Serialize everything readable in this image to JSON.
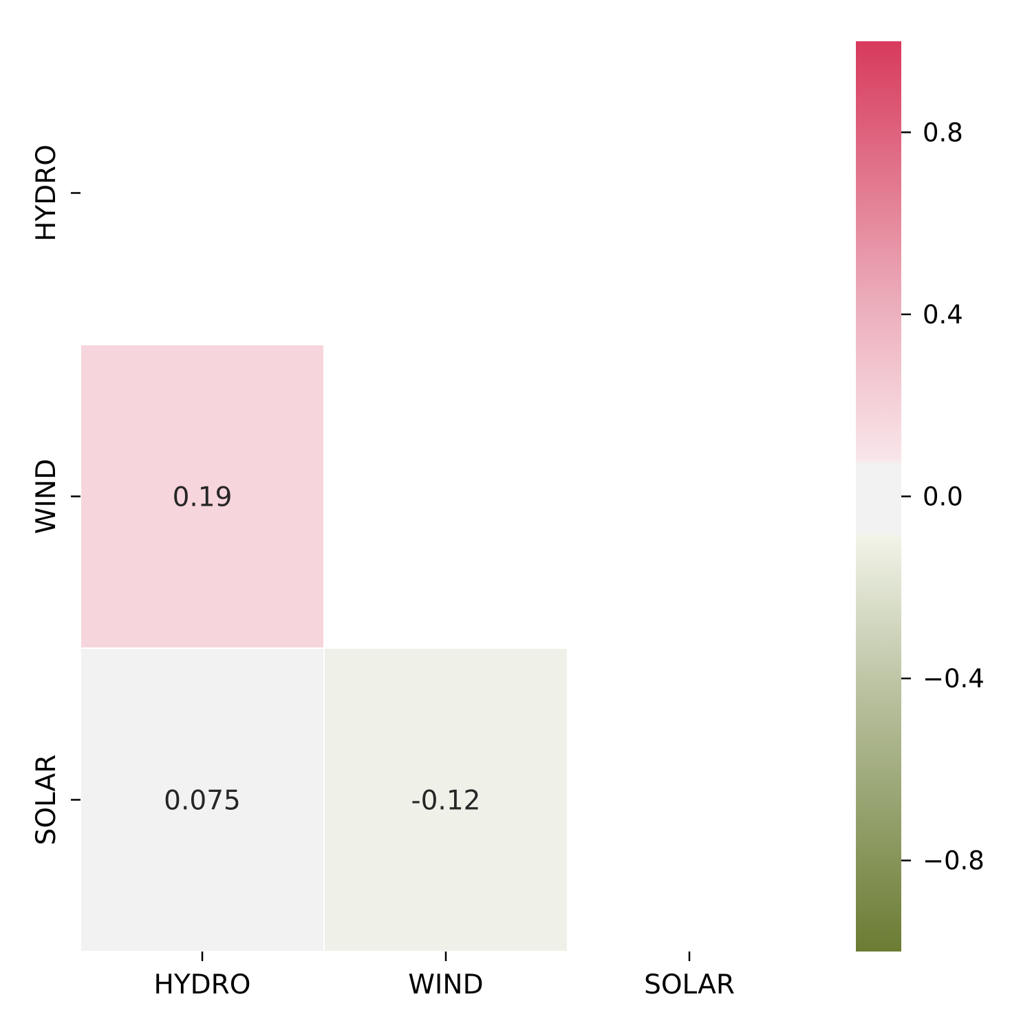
{
  "chart_data": {
    "type": "heatmap",
    "title": "",
    "xlabel": "",
    "ylabel": "",
    "row_labels": [
      "HYDRO",
      "WIND",
      "SOLAR"
    ],
    "col_labels": [
      "HYDRO",
      "WIND",
      "SOLAR"
    ],
    "mask": "upper triangle and diagonal",
    "cells": [
      {
        "row": 1,
        "col": 0,
        "value": 0.19,
        "label": "0.19",
        "color": "#f6d5dc"
      },
      {
        "row": 2,
        "col": 0,
        "value": 0.075,
        "label": "0.075",
        "color": "#f2f2f2"
      },
      {
        "row": 2,
        "col": 1,
        "value": -0.12,
        "label": "-0.12",
        "color": "#eff1e8"
      }
    ],
    "colorbar": {
      "range": [
        -1.0,
        1.0
      ],
      "ticks": [
        {
          "value": 0.8,
          "label": "0.8"
        },
        {
          "value": 0.4,
          "label": "0.4"
        },
        {
          "value": 0.0,
          "label": "0.0"
        },
        {
          "value": -0.4,
          "label": "−0.4"
        },
        {
          "value": -0.8,
          "label": "−0.8"
        }
      ],
      "colors": {
        "max": "#d73a5c",
        "upper_mid": "#ebaab8",
        "center": "#f2f2f2",
        "lower_mid": "#b8c09e",
        "min": "#6b7c33"
      }
    },
    "grid": false,
    "legend": "colorbar right"
  }
}
